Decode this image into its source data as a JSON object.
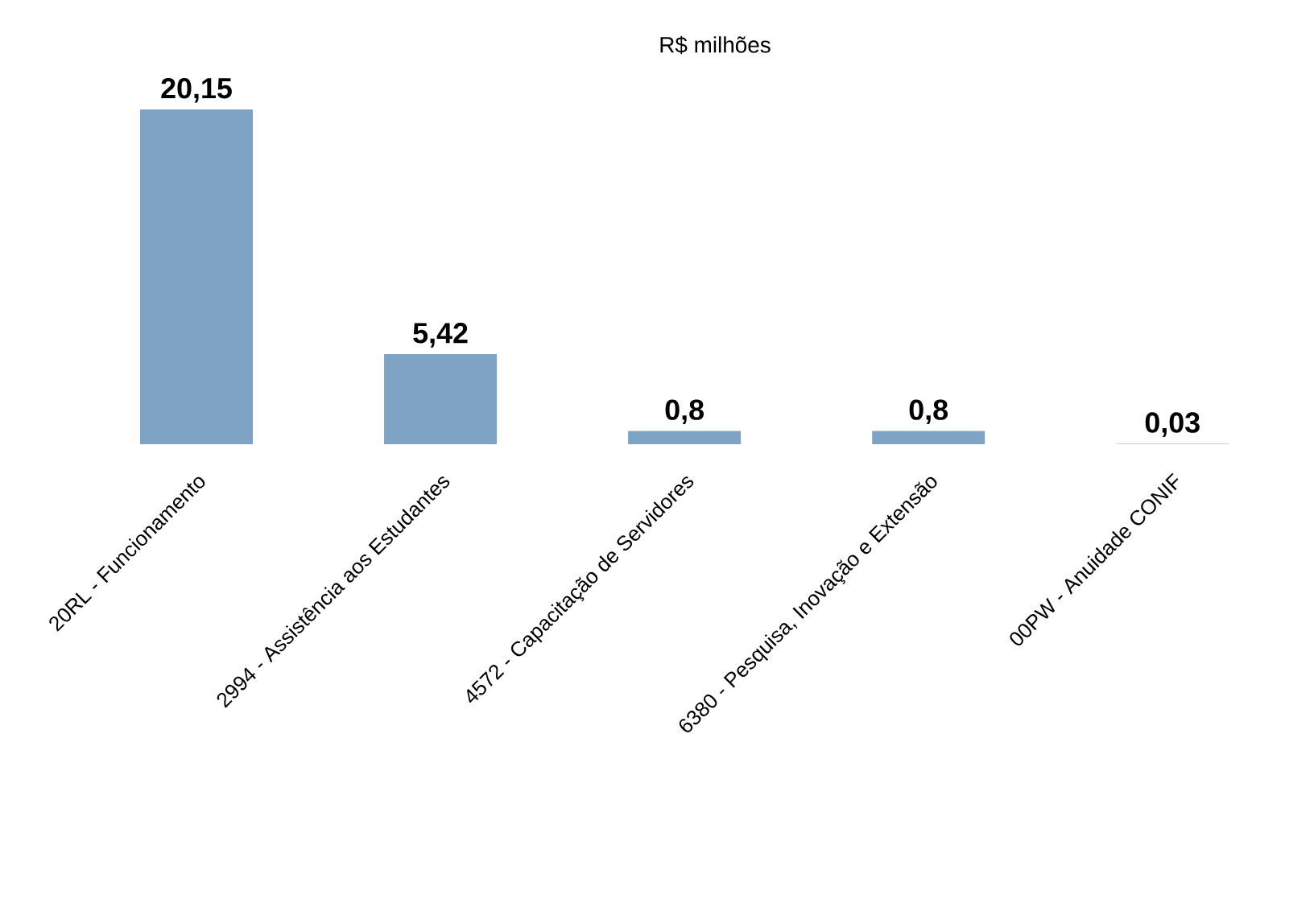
{
  "chart_data": {
    "type": "bar",
    "title": "R$ milhões",
    "categories": [
      "20RL - Funcionamento",
      "2994 - Assistência aos Estudantes",
      "4572 - Capacitação de Servidores",
      "6380 - Pesquisa, Inovação e Extensão",
      "00PW - Anuidade CONIF"
    ],
    "values": [
      20.15,
      5.42,
      0.8,
      0.8,
      0.03
    ],
    "value_labels": [
      "20,15",
      "5,42",
      "0,8",
      "0,8",
      "0,03"
    ],
    "color": "#7ea3c4"
  }
}
